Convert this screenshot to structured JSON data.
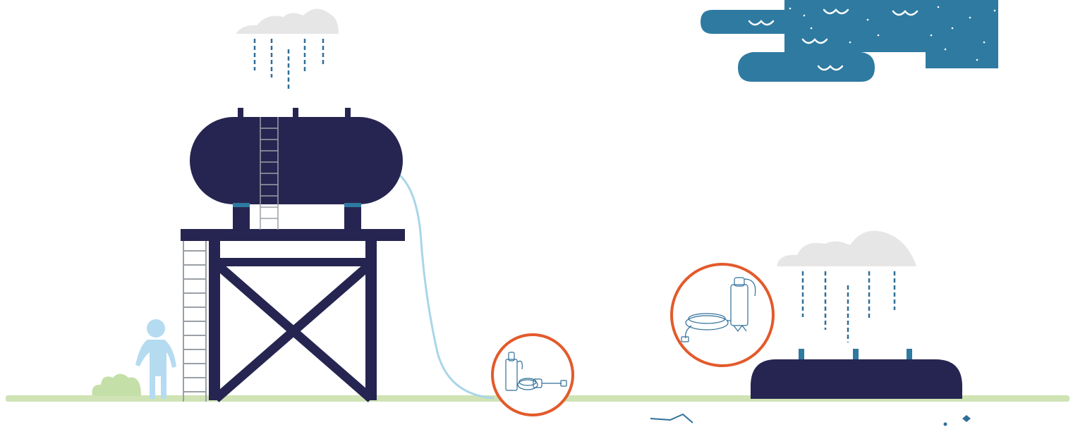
{
  "colors": {
    "background": "#ffffff",
    "tank_navy": "#262551",
    "water_blue": "#2e7aa1",
    "rain_blue": "#2f6f9a",
    "hose_light_blue": "#a9d6e8",
    "person_blue": "#b5dbf0",
    "ground_green": "#cfe3b4",
    "bush_green": "#c5dfa8",
    "cloud_grey": "#e6e6e6",
    "filter_circle_orange": "#e35a2b",
    "ladder_grey": "#9aa0a6"
  },
  "icons": [
    "water-tower-icon",
    "raincloud-icon",
    "water-body-icon",
    "water-filter-pump-icon",
    "ground-tank-icon",
    "person-icon",
    "bush-icon"
  ]
}
